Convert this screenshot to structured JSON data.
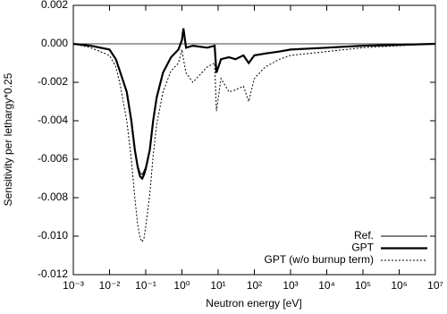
{
  "chart_data": {
    "type": "line",
    "xlabel": "Neutron energy [eV]",
    "ylabel": "Sensitivity per lethargy*0.25",
    "xscale": "log",
    "xlim": [
      0.001,
      10000000
    ],
    "xticks": [
      {
        "value": 0.001,
        "label": "10⁻³"
      },
      {
        "value": 0.01,
        "label": "10⁻²"
      },
      {
        "value": 0.1,
        "label": "10⁻¹"
      },
      {
        "value": 1,
        "label": "10⁰"
      },
      {
        "value": 10,
        "label": "10¹"
      },
      {
        "value": 100,
        "label": "10²"
      },
      {
        "value": 1000,
        "label": "10³"
      },
      {
        "value": 10000,
        "label": "10⁴"
      },
      {
        "value": 100000,
        "label": "10⁵"
      },
      {
        "value": 1000000,
        "label": "10⁶"
      },
      {
        "value": 10000000,
        "label": "10⁷"
      }
    ],
    "ylim": [
      -0.012,
      0.002
    ],
    "yticks": [
      0.002,
      {
        "value": 0,
        "label": "0.000"
      },
      -0.002,
      -0.004,
      -0.006,
      -0.008,
      {
        "value": -0.01,
        "label": "-0.010"
      },
      -0.012
    ],
    "legend": "lower right",
    "x": [
      0.001,
      0.003,
      0.01,
      0.015,
      0.02,
      0.03,
      0.04,
      0.05,
      0.06,
      0.07,
      0.08,
      0.09,
      0.1,
      0.13,
      0.16,
      0.2,
      0.3,
      0.5,
      0.8,
      1,
      1.1,
      1.3,
      2,
      5,
      8,
      9,
      12,
      20,
      30,
      50,
      70,
      100,
      200,
      500,
      1000,
      10000,
      100000,
      1000000,
      10000000
    ],
    "series": [
      {
        "name": "Ref.",
        "color": "#000000",
        "width": 1,
        "dash": "solid",
        "values": [
          0,
          -0.0001,
          -0.0003,
          -0.0008,
          -0.0015,
          -0.0025,
          -0.0039,
          -0.0054,
          -0.0063,
          -0.0067,
          -0.0068,
          -0.0066,
          -0.0064,
          -0.0054,
          -0.0039,
          -0.0027,
          -0.0015,
          -0.0007,
          -0.0003,
          0.0002,
          0.0008,
          -0.0002,
          -0.0001,
          -0.0002,
          -0.0001,
          -0.0015,
          -0.0008,
          -0.0007,
          -0.0008,
          -0.0006,
          -0.001,
          -0.0006,
          -0.0005,
          -0.0004,
          -0.0003,
          -0.0002,
          -0.0001,
          -5e-05,
          0
        ]
      },
      {
        "name": "GPT",
        "color": "#000000",
        "width": 2.2,
        "dash": "solid",
        "values": [
          0,
          -0.0001,
          -0.0003,
          -0.0008,
          -0.0015,
          -0.0025,
          -0.004,
          -0.0055,
          -0.0064,
          -0.0069,
          -0.007,
          -0.0068,
          -0.0065,
          -0.0055,
          -0.004,
          -0.0028,
          -0.0015,
          -0.0007,
          -0.0003,
          0.0002,
          0.0008,
          -0.0002,
          -0.0001,
          -0.0002,
          -0.0001,
          -0.0015,
          -0.0008,
          -0.0007,
          -0.0008,
          -0.0006,
          -0.001,
          -0.0006,
          -0.0005,
          -0.0004,
          -0.0003,
          -0.0002,
          -0.0001,
          -5e-05,
          0
        ]
      },
      {
        "name": "GPT (w/o burnup term)",
        "color": "#000000",
        "width": 1,
        "dash": "dotted",
        "values": [
          0,
          -0.0002,
          -0.0006,
          -0.0012,
          -0.0022,
          -0.004,
          -0.006,
          -0.008,
          -0.0094,
          -0.0101,
          -0.0103,
          -0.0101,
          -0.0095,
          -0.0078,
          -0.0058,
          -0.0042,
          -0.0025,
          -0.0014,
          -0.001,
          -0.0003,
          -0.0008,
          -0.0015,
          -0.002,
          -0.0012,
          -0.001,
          -0.0035,
          -0.0018,
          -0.0025,
          -0.0024,
          -0.0022,
          -0.003,
          -0.0018,
          -0.0012,
          -0.0008,
          -0.0006,
          -0.0004,
          -0.0002,
          -0.0001,
          0
        ]
      }
    ]
  }
}
